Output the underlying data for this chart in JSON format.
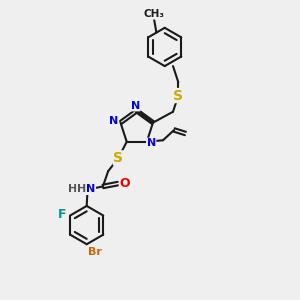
{
  "bg_color": "#efefef",
  "bond_color": "#1a1a1a",
  "atom_colors": {
    "N": "#0000ee",
    "S": "#ccaa00",
    "O": "#ee0000",
    "F": "#009999",
    "Br": "#cc6600",
    "C": "#1a1a1a",
    "H": "#555555"
  },
  "lw": 1.5,
  "fs": 8
}
